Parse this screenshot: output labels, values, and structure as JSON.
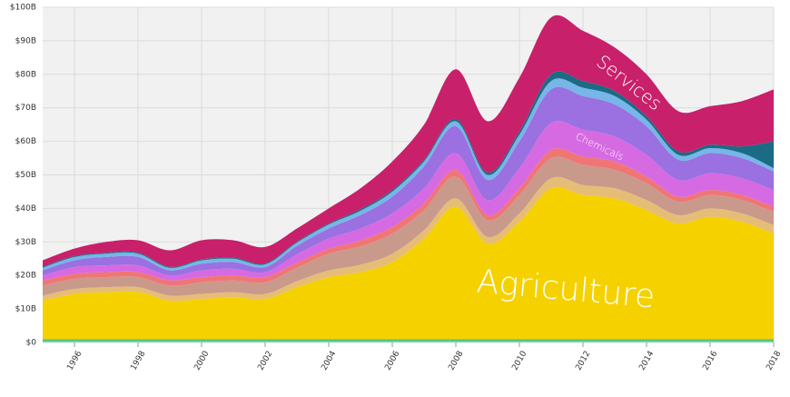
{
  "chart_data": {
    "type": "stacked_area",
    "x": [
      1995,
      1996,
      1997,
      1998,
      1999,
      2000,
      2001,
      2002,
      2003,
      2004,
      2005,
      2006,
      2007,
      2008,
      2009,
      2010,
      2011,
      2012,
      2013,
      2014,
      2015,
      2016,
      2017,
      2018
    ],
    "xlim": [
      1995,
      2018
    ],
    "xticks": [
      1996,
      1998,
      2000,
      2002,
      2004,
      2006,
      2008,
      2010,
      2012,
      2014,
      2016,
      2018
    ],
    "ylim": [
      0,
      100
    ],
    "yticks": [
      {
        "value": 0,
        "label": "$0"
      },
      {
        "value": 10,
        "label": "$10B"
      },
      {
        "value": 20,
        "label": "$20B"
      },
      {
        "value": 30,
        "label": "$30B"
      },
      {
        "value": 40,
        "label": "$40B"
      },
      {
        "value": 50,
        "label": "$50B"
      },
      {
        "value": 60,
        "label": "$60B"
      },
      {
        "value": 70,
        "label": "$70B"
      },
      {
        "value": 80,
        "label": "$80B"
      },
      {
        "value": 90,
        "label": "$90B"
      },
      {
        "value": 100,
        "label": "$100B"
      }
    ],
    "grid": true,
    "series": [
      {
        "color": "#8fdccc",
        "values": [
          0.3,
          0.3,
          0.3,
          0.3,
          0.3,
          0.3,
          0.3,
          0.3,
          0.3,
          0.3,
          0.3,
          0.3,
          0.3,
          0.3,
          0.3,
          0.3,
          0.3,
          0.3,
          0.3,
          0.3,
          0.3,
          0.3,
          0.3,
          0.3
        ]
      },
      {
        "color": "#4cc77a",
        "values": [
          0.7,
          0.7,
          0.7,
          0.7,
          0.7,
          0.7,
          0.7,
          0.7,
          0.7,
          0.7,
          0.7,
          0.7,
          0.7,
          0.7,
          0.7,
          0.7,
          0.7,
          0.7,
          0.7,
          0.7,
          0.7,
          0.7,
          0.7,
          0.7
        ]
      },
      {
        "name": "Agriculture",
        "color": "#f6d100",
        "values": [
          11.5,
          13.5,
          14,
          14,
          11.5,
          12,
          12.5,
          12,
          15.5,
          18.5,
          20,
          23,
          30,
          39.5,
          28.5,
          35,
          45,
          43,
          42,
          38.5,
          34.5,
          36.5,
          35,
          31.5
        ]
      },
      {
        "color": "#e6bd76",
        "values": [
          1.5,
          1.5,
          1.5,
          1.5,
          1.5,
          1.5,
          1.5,
          1.5,
          1.8,
          2,
          2.2,
          2.5,
          2.5,
          2.5,
          2,
          2.5,
          3,
          3,
          3,
          3,
          2.5,
          2.5,
          2.5,
          2.5
        ]
      },
      {
        "color": "#c99a8b",
        "values": [
          3,
          3,
          3,
          3,
          3,
          3.5,
          3.5,
          3.5,
          4,
          5,
          5.5,
          6,
          6,
          6.5,
          5,
          5.5,
          6,
          6,
          5.5,
          5,
          4,
          4,
          4,
          4
        ]
      },
      {
        "color": "#f07575",
        "values": [
          1.5,
          1.5,
          1.5,
          1.5,
          1.5,
          1.5,
          1.5,
          1.5,
          1.5,
          1.5,
          1.8,
          2,
          2,
          2,
          1.5,
          2,
          2.5,
          2.5,
          2.5,
          2,
          1.5,
          1.5,
          1.5,
          1.5
        ]
      },
      {
        "name": "Chemicals",
        "color": "#d66ae2",
        "values": [
          1.5,
          2,
          2,
          2,
          1.5,
          2,
          2,
          1.5,
          2.5,
          3,
          3.5,
          4,
          4.5,
          5,
          4.5,
          6,
          8,
          8,
          7.5,
          6.5,
          5,
          5,
          5,
          5
        ]
      },
      {
        "color": "#9b70e0",
        "values": [
          1.5,
          2,
          2.5,
          2.5,
          1.5,
          2,
          2,
          1.5,
          2.5,
          3,
          4,
          5,
          6.5,
          8,
          6,
          8,
          10,
          10,
          9.5,
          8.5,
          6,
          6,
          6,
          5.5
        ]
      },
      {
        "color": "#76b6e8",
        "values": [
          0.8,
          1,
          1,
          1,
          0.8,
          1,
          1,
          0.8,
          1,
          1.2,
          1.3,
          1.5,
          1.5,
          1.5,
          1.5,
          2,
          2.5,
          2.5,
          2.5,
          2,
          1.5,
          1.5,
          1.5,
          1
        ]
      },
      {
        "color": "#1b6b85",
        "values": [
          0.3,
          0.3,
          0.3,
          0.3,
          0.3,
          0.3,
          0.3,
          0.3,
          0.3,
          0.3,
          0.5,
          0.5,
          0.5,
          0.7,
          0.7,
          1,
          2,
          2,
          1.5,
          1,
          1,
          1,
          2,
          8
        ]
      },
      {
        "name": "Services",
        "color": "#c8206a",
        "values": [
          1.9,
          2.2,
          3.2,
          3.7,
          4.9,
          5.7,
          5.2,
          4.9,
          3.9,
          4.5,
          6.2,
          8.5,
          10.5,
          14.8,
          15.3,
          16,
          17,
          15,
          13,
          12.5,
          12,
          11.5,
          13.5,
          15.5
        ]
      }
    ]
  }
}
